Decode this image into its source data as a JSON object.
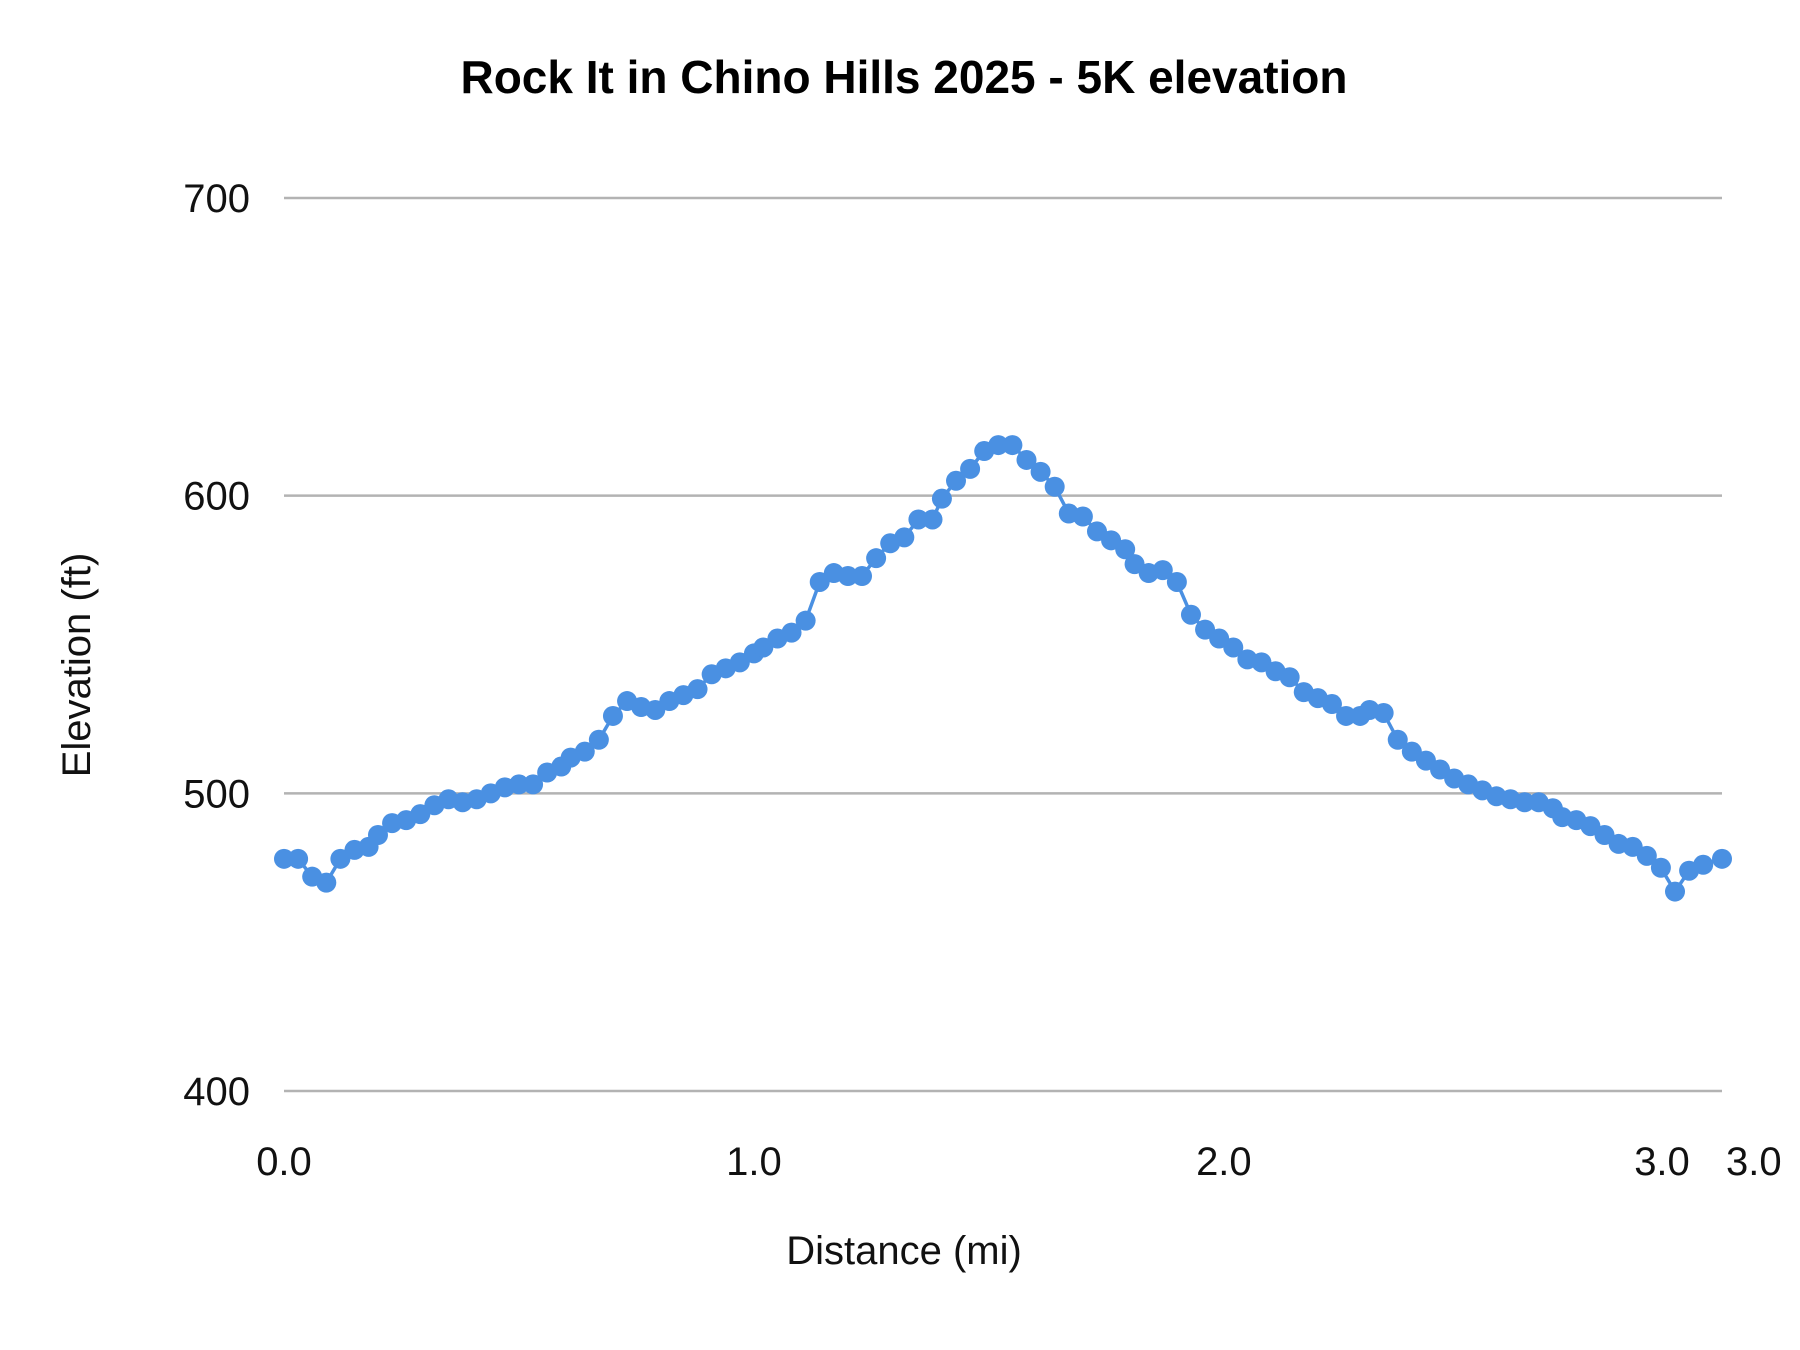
{
  "chart_data": {
    "type": "line",
    "title": "Rock It in Chino Hills 2025 - 5K elevation",
    "xlabel": "Distance (mi)",
    "ylabel": "Elevation (ft)",
    "xlim": [
      0,
      3.06
    ],
    "ylim": [
      400,
      700
    ],
    "x_ticks": [
      "0.0",
      "1.0",
      "2.0",
      "3.0",
      "3.0"
    ],
    "x_tick_values": [
      0,
      1,
      2,
      3,
      3.06
    ],
    "y_ticks": [
      "400",
      "500",
      "600",
      "700"
    ],
    "y_tick_values": [
      400,
      500,
      600,
      700
    ],
    "grid": true,
    "legend": "none",
    "markers": true,
    "color": "#4a90e2",
    "x": [
      0.0,
      0.03,
      0.06,
      0.09,
      0.12,
      0.15,
      0.18,
      0.2,
      0.23,
      0.26,
      0.29,
      0.32,
      0.35,
      0.38,
      0.41,
      0.44,
      0.47,
      0.5,
      0.53,
      0.56,
      0.59,
      0.61,
      0.64,
      0.67,
      0.7,
      0.73,
      0.76,
      0.79,
      0.82,
      0.85,
      0.88,
      0.91,
      0.94,
      0.97,
      1.0,
      1.02,
      1.05,
      1.08,
      1.11,
      1.14,
      1.17,
      1.2,
      1.23,
      1.26,
      1.29,
      1.32,
      1.35,
      1.38,
      1.4,
      1.43,
      1.46,
      1.49,
      1.52,
      1.55,
      1.58,
      1.61,
      1.64,
      1.67,
      1.7,
      1.73,
      1.76,
      1.79,
      1.81,
      1.84,
      1.87,
      1.9,
      1.93,
      1.96,
      1.99,
      2.02,
      2.05,
      2.08,
      2.11,
      2.14,
      2.17,
      2.2,
      2.23,
      2.26,
      2.29,
      2.31,
      2.34,
      2.37,
      2.4,
      2.43,
      2.46,
      2.49,
      2.52,
      2.55,
      2.58,
      2.61,
      2.64,
      2.67,
      2.7,
      2.72,
      2.75,
      2.78,
      2.81,
      2.84,
      2.87,
      2.9,
      2.93,
      2.96,
      2.99,
      3.02,
      3.06
    ],
    "y": [
      478,
      478,
      472,
      470,
      478,
      481,
      482,
      486,
      490,
      491,
      493,
      496,
      498,
      497,
      498,
      500,
      502,
      503,
      503,
      507,
      509,
      512,
      514,
      518,
      526,
      531,
      529,
      528,
      531,
      533,
      535,
      540,
      542,
      544,
      547,
      549,
      552,
      554,
      558,
      571,
      574,
      573,
      573,
      579,
      584,
      586,
      592,
      592,
      599,
      605,
      609,
      615,
      617,
      617,
      612,
      608,
      603,
      594,
      593,
      588,
      585,
      582,
      577,
      574,
      575,
      571,
      560,
      555,
      552,
      549,
      545,
      544,
      541,
      539,
      534,
      532,
      530,
      526,
      526,
      528,
      527,
      518,
      514,
      511,
      508,
      505,
      503,
      501,
      499,
      498,
      497,
      497,
      495,
      492,
      491,
      489,
      486,
      483,
      482,
      479,
      475,
      467,
      474,
      476,
      478
    ]
  }
}
